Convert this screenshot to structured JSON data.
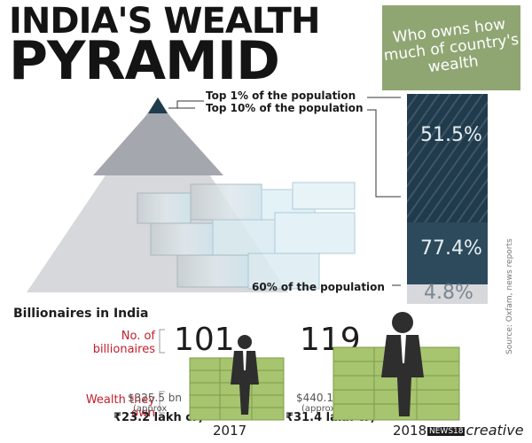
{
  "title": {
    "line1": "INDIA'S WEALTH",
    "line2": "PYRAMID"
  },
  "subtitle": "Who owns how much of country's wealth",
  "pyramid_labels": {
    "top1": "Top 1% of the population",
    "top10": "Top 10% of the population",
    "bottom60": "60% of the population"
  },
  "shares": [
    {
      "label": "Top 1%",
      "percent": "51.5%",
      "value": 51.5
    },
    {
      "label": "Top 10%",
      "percent": "77.4%",
      "value": 77.4
    },
    {
      "label": "60%",
      "percent": "4.8%",
      "value": 4.8
    }
  ],
  "colors": {
    "dark_navy": "#1f3b4c",
    "mid_grey": "#a5a7ae",
    "light_grey": "#d7d8dc",
    "green_box": "#8fa673",
    "red_label": "#c41d2b"
  },
  "billionaires": {
    "section_title": "Billionaires in India",
    "count_label": "No. of billionaires",
    "wealth_label": "Wealth they own",
    "years": [
      {
        "year": "2017",
        "count": "101",
        "wealth_usd": "$325.5 bn",
        "approx": "(approx",
        "wealth_inr": "₹23.2 lakh cr)"
      },
      {
        "year": "2018",
        "count": "119",
        "wealth_usd": "$440.1 bn",
        "approx": "(approx",
        "wealth_inr": "₹31.4 lakh cr)"
      }
    ]
  },
  "source": "Source: Oxfam, news reports",
  "logo": {
    "prefix": "NEWS18",
    "text": "creative"
  }
}
